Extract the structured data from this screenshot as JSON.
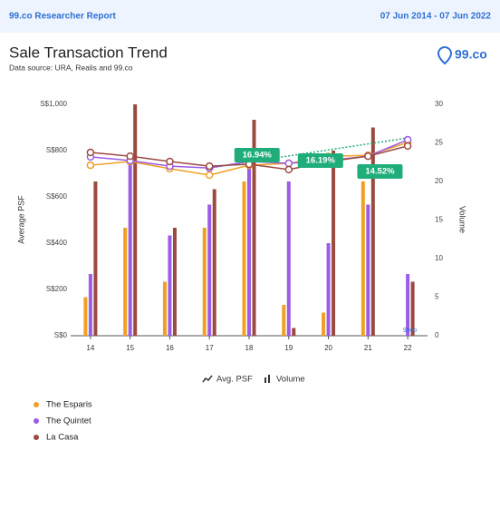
{
  "header": {
    "brand": "99.co Researcher Report",
    "date_range": "07 Jun 2014 - 07 Jun 2022",
    "logo": "99.co"
  },
  "chart_data": {
    "type": "combo",
    "title": "Sale Transaction Trend",
    "subtitle": "Data source: URA, Realis and 99.co",
    "y_label": "Average PSF",
    "y2_label": "Volume",
    "categories": [
      "14",
      "15",
      "16",
      "17",
      "18",
      "19",
      "20",
      "21",
      "22"
    ],
    "series": [
      {
        "name": "The Esparis",
        "color": "#f0a023",
        "values": [
          737,
          753,
          722,
          694,
          737,
          745,
          775,
          780,
          835
        ],
        "volume": [
          5,
          14,
          7,
          14,
          20,
          4,
          3,
          20,
          0
        ]
      },
      {
        "name": "The Quintet",
        "color": "#9b5ce6",
        "values": [
          773,
          757,
          733,
          725,
          753,
          745,
          757,
          776,
          847
        ],
        "volume": [
          8,
          23,
          13,
          17,
          23,
          20,
          12,
          17,
          8
        ]
      },
      {
        "name": "La Casa",
        "color": "#9b4a40",
        "values": [
          792,
          776,
          753,
          733,
          741,
          718,
          753,
          776,
          820
        ],
        "volume": [
          20,
          30,
          14,
          19,
          28,
          1,
          24,
          27,
          7
        ]
      }
    ],
    "ylim": [
      0,
      1000
    ],
    "yticks": [
      {
        "value": 0,
        "label": "S$0"
      },
      {
        "value": 200,
        "label": "S$200"
      },
      {
        "value": 400,
        "label": "S$400"
      },
      {
        "value": 600,
        "label": "S$600"
      },
      {
        "value": 800,
        "label": "S$800"
      },
      {
        "value": 1000,
        "label": "S$1,000"
      }
    ],
    "y2lim": [
      0,
      30
    ],
    "y2ticks": [
      0,
      5,
      10,
      15,
      20,
      25,
      30
    ],
    "type_legend": [
      "Avg. PSF",
      "Volume"
    ],
    "annotations": [
      {
        "value": 16.94,
        "label": "16.94%"
      },
      {
        "value": 16.19,
        "label": "16.19%"
      },
      {
        "value": 14.52,
        "label": "14.52%"
      }
    ],
    "watermark": "99co"
  }
}
